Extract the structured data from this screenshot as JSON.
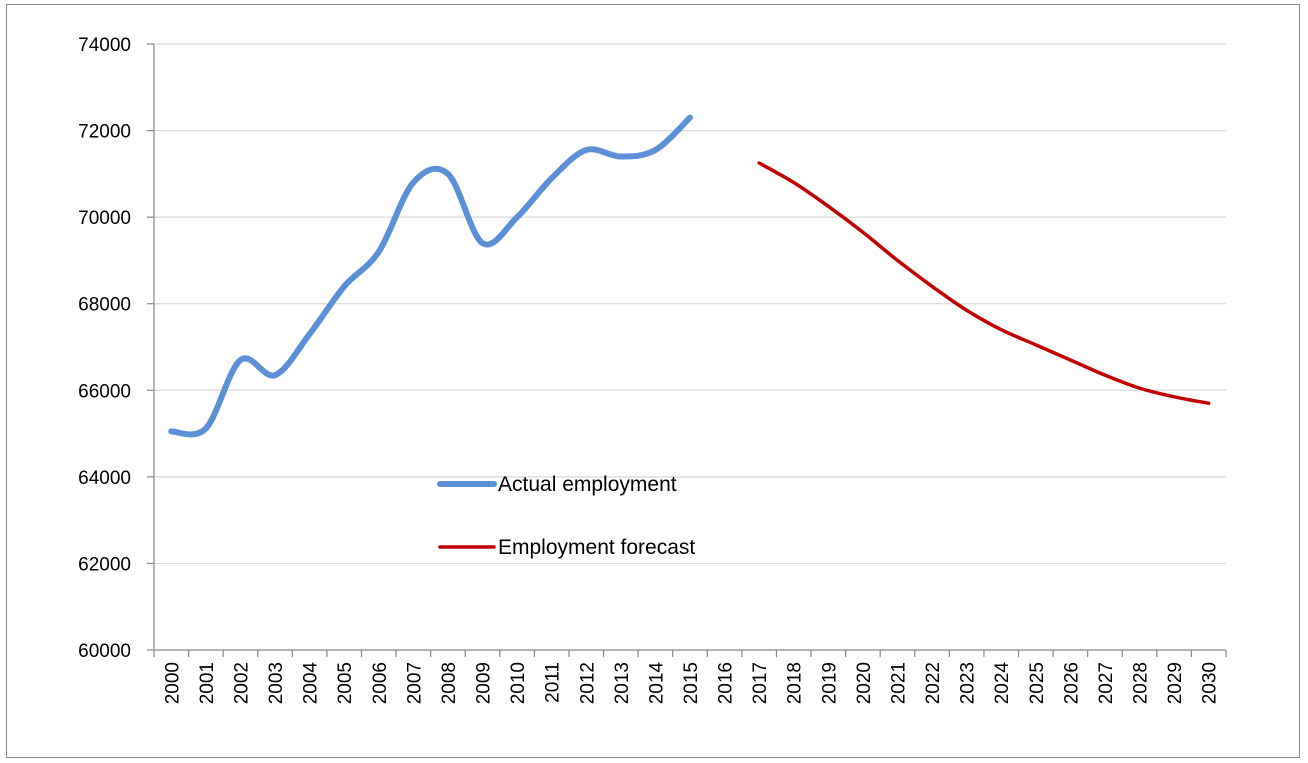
{
  "chart_data": {
    "type": "line",
    "categories": [
      "2000",
      "2001",
      "2002",
      "2003",
      "2004",
      "2005",
      "2006",
      "2007",
      "2008",
      "2009",
      "2010",
      "2011",
      "2012",
      "2013",
      "2014",
      "2015",
      "2016",
      "2017",
      "2018",
      "2019",
      "2020",
      "2021",
      "2022",
      "2023",
      "2024",
      "2025",
      "2026",
      "2027",
      "2028",
      "2029",
      "2030"
    ],
    "series": [
      {
        "name": "Actual employment",
        "color": "#5b8fd6",
        "values": [
          65050,
          65120,
          66700,
          66350,
          67300,
          68400,
          69200,
          70800,
          71000,
          69400,
          70000,
          70900,
          71550,
          71400,
          71550,
          72300,
          null,
          null,
          null,
          null,
          null,
          null,
          null,
          null,
          null,
          null,
          null,
          null,
          null,
          null,
          null
        ]
      },
      {
        "name": "Employment forecast",
        "color": "#c00000",
        "values": [
          null,
          null,
          null,
          null,
          null,
          null,
          null,
          null,
          null,
          null,
          null,
          null,
          null,
          null,
          null,
          null,
          null,
          71250,
          70800,
          70250,
          69650,
          69000,
          68400,
          67850,
          67400,
          67050,
          66700,
          66350,
          66050,
          65850,
          65700
        ]
      }
    ],
    "yticks": [
      "60000",
      "62000",
      "64000",
      "66000",
      "68000",
      "70000",
      "72000",
      "74000"
    ],
    "ylim": [
      60000,
      74000
    ],
    "grid": true,
    "legend_position": "center-left"
  }
}
